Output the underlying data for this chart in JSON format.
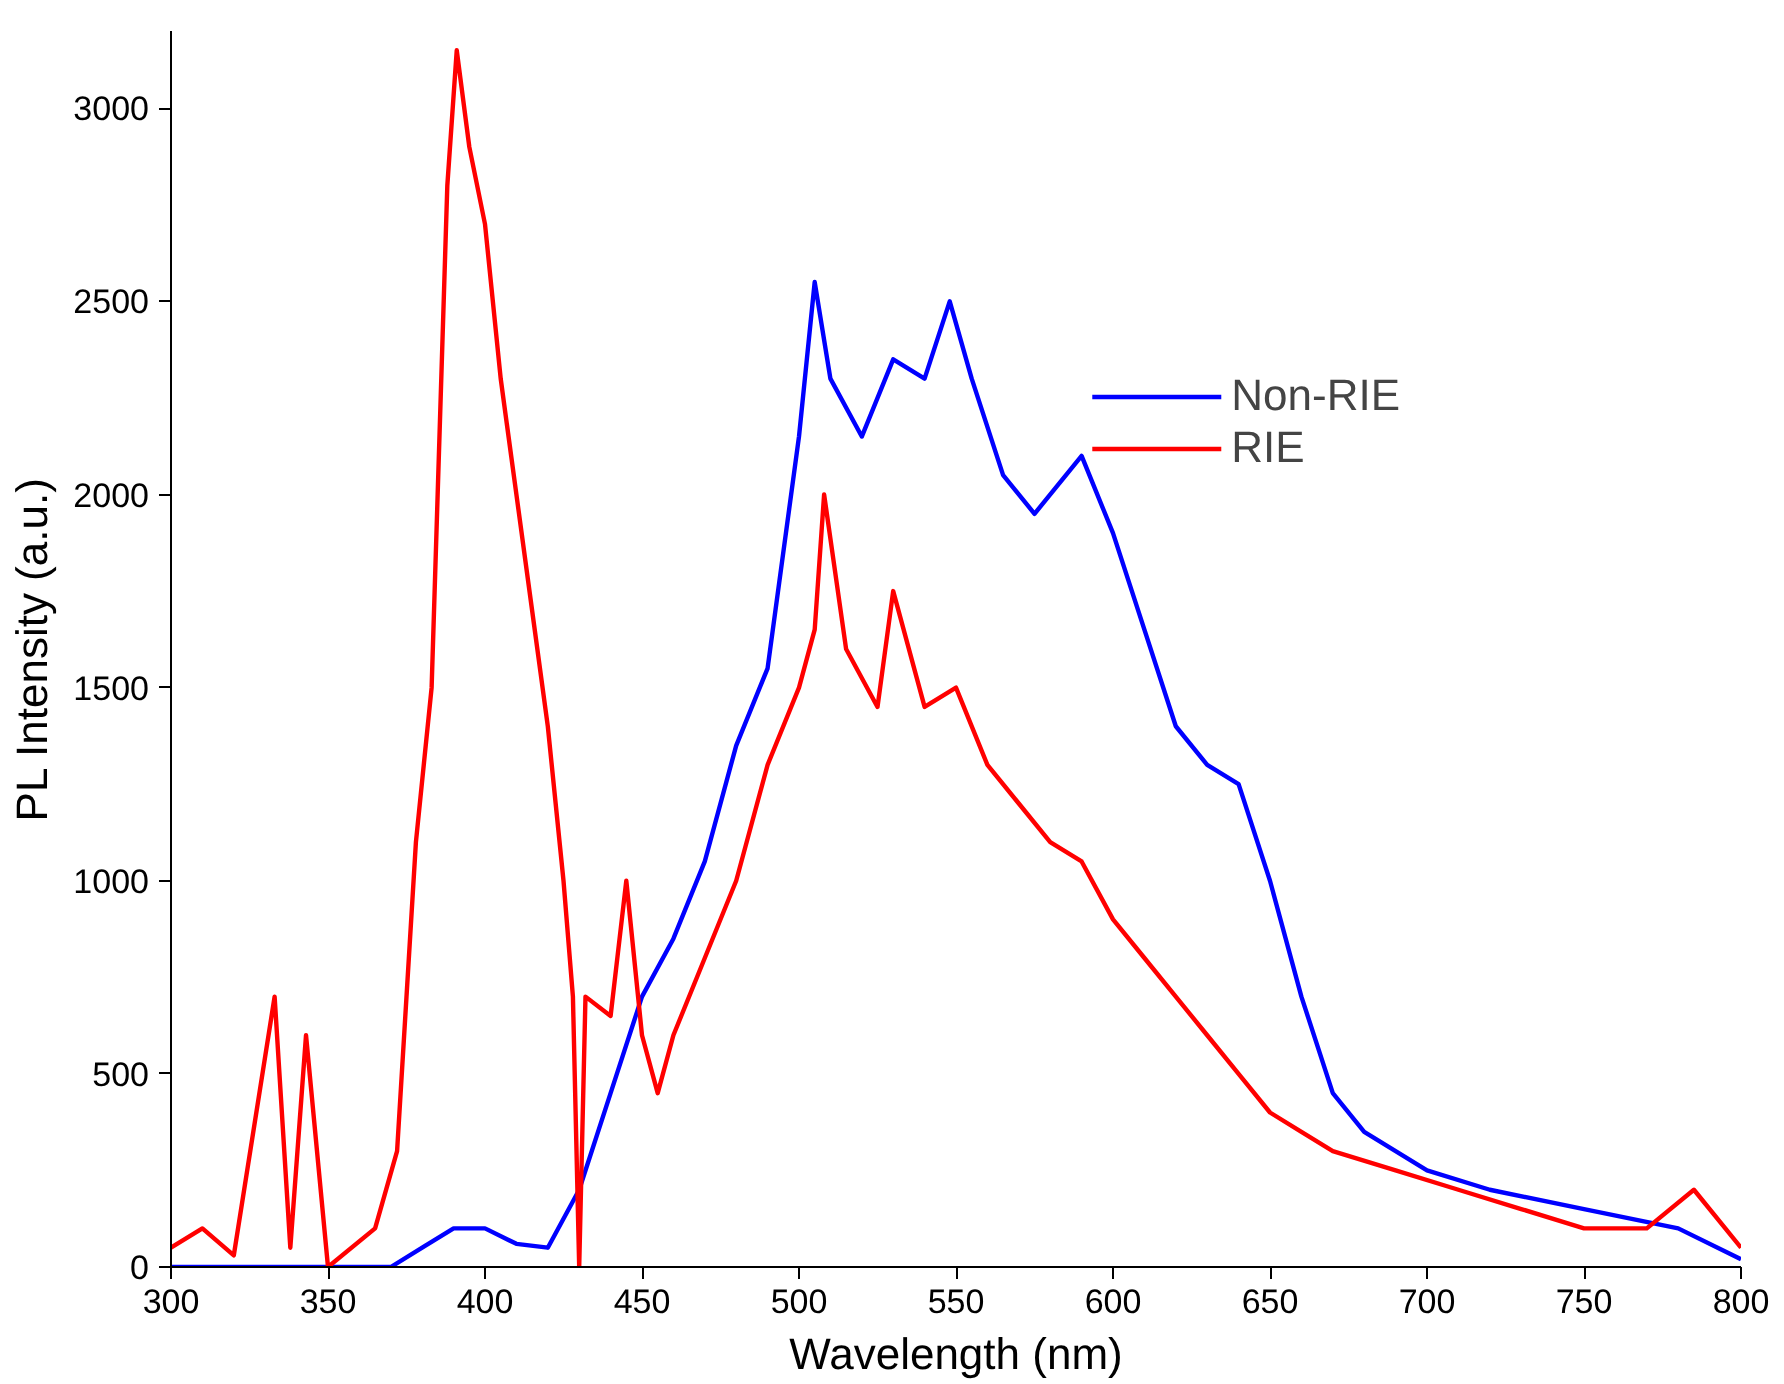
{
  "chart_data": {
    "type": "line",
    "xlabel": "Wavelength (nm)",
    "ylabel": "PL Intensity (a.u.)",
    "xlim": [
      300,
      800
    ],
    "ylim": [
      0,
      3200
    ],
    "xticks": [
      300,
      350,
      400,
      450,
      500,
      550,
      600,
      650,
      700,
      750,
      800
    ],
    "yticks": [
      0,
      500,
      1000,
      1500,
      2000,
      2500,
      3000
    ],
    "grid": false,
    "legend": "top right",
    "marker": "none",
    "line_style": "solid",
    "series": [
      {
        "name": "Non-RIE",
        "color": "#0000ff",
        "x": [
          300,
          320,
          340,
          360,
          370,
          380,
          390,
          400,
          410,
          420,
          430,
          440,
          450,
          460,
          470,
          480,
          490,
          500,
          505,
          510,
          520,
          530,
          540,
          548,
          555,
          565,
          575,
          590,
          600,
          610,
          620,
          630,
          640,
          650,
          660,
          670,
          680,
          700,
          720,
          750,
          780,
          800
        ],
        "values": [
          0,
          0,
          0,
          0,
          0,
          50,
          100,
          100,
          60,
          50,
          200,
          450,
          700,
          850,
          1050,
          1350,
          1550,
          2150,
          2550,
          2300,
          2150,
          2350,
          2300,
          2500,
          2300,
          2050,
          1950,
          2100,
          1900,
          1650,
          1400,
          1300,
          1250,
          1000,
          700,
          450,
          350,
          250,
          200,
          150,
          100,
          20
        ]
      },
      {
        "name": "RIE",
        "color": "#ff0000",
        "x": [
          300,
          310,
          320,
          333,
          338,
          343,
          350,
          365,
          372,
          378,
          383,
          388,
          391,
          395,
          400,
          405,
          410,
          415,
          420,
          425,
          428,
          430,
          432,
          440,
          445,
          450,
          455,
          460,
          470,
          480,
          490,
          500,
          505,
          508,
          515,
          525,
          530,
          540,
          550,
          560,
          570,
          580,
          590,
          600,
          610,
          620,
          630,
          640,
          650,
          660,
          670,
          690,
          710,
          730,
          750,
          770,
          785,
          800
        ],
        "values": [
          50,
          100,
          30,
          700,
          50,
          600,
          0,
          100,
          300,
          1100,
          1500,
          2800,
          3150,
          2900,
          2700,
          2300,
          2000,
          1700,
          1400,
          1000,
          700,
          0,
          700,
          650,
          1000,
          600,
          450,
          600,
          800,
          1000,
          1300,
          1500,
          1650,
          2000,
          1600,
          1450,
          1750,
          1450,
          1500,
          1300,
          1200,
          1100,
          1050,
          900,
          800,
          700,
          600,
          500,
          400,
          350,
          300,
          250,
          200,
          150,
          100,
          100,
          200,
          50
        ]
      }
    ]
  }
}
